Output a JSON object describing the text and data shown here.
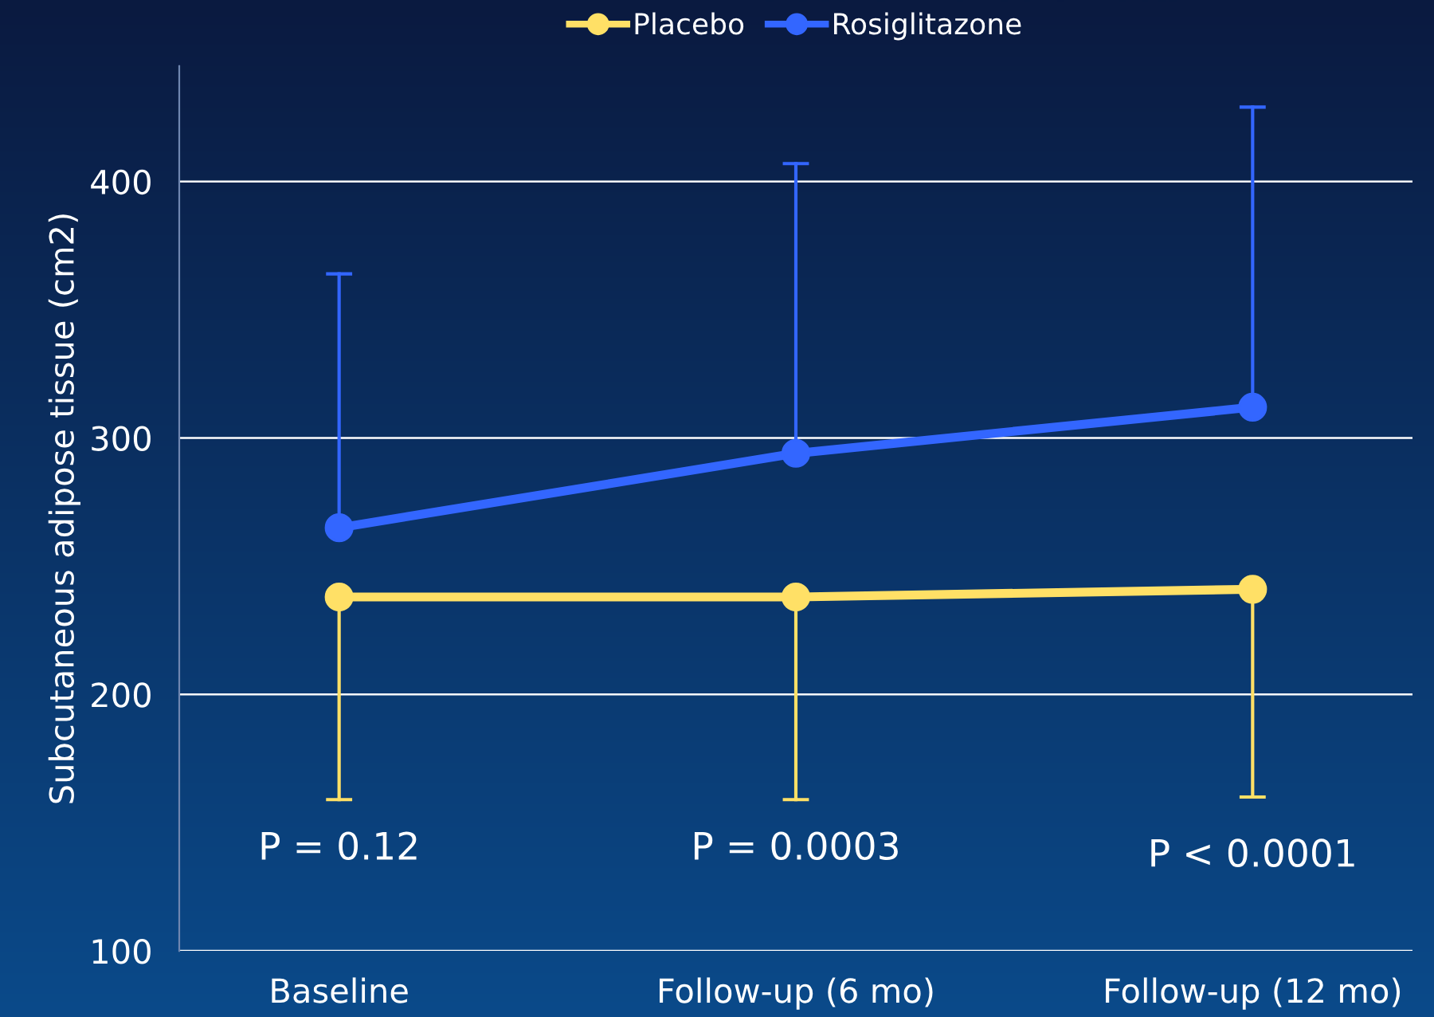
{
  "chart_data": {
    "type": "line",
    "ylabel": "Subcutaneous adipose tissue (cm2)",
    "categories": [
      "Baseline",
      "Follow-up (6 mo)",
      "Follow-up (12 mo)"
    ],
    "series": [
      {
        "name": "Placebo",
        "color": "#ffe066",
        "values": [
          238,
          238,
          241
        ],
        "errors": [
          [
            159,
            238
          ],
          [
            159,
            238
          ],
          [
            160,
            241
          ]
        ]
      },
      {
        "name": "Rosiglitazone",
        "color": "#3366ff",
        "values": [
          265,
          294,
          312
        ],
        "errors": [
          [
            265,
            364
          ],
          [
            294,
            407
          ],
          [
            312,
            429
          ]
        ]
      }
    ],
    "ylim": [
      100,
      445
    ],
    "yticks": [
      100,
      200,
      300,
      400
    ],
    "grid": "y",
    "legend": "top",
    "marker": "circle",
    "line_style": "solid",
    "annotations": [
      "P = 0.12",
      "P = 0.0003",
      "P < 0.0001"
    ]
  }
}
